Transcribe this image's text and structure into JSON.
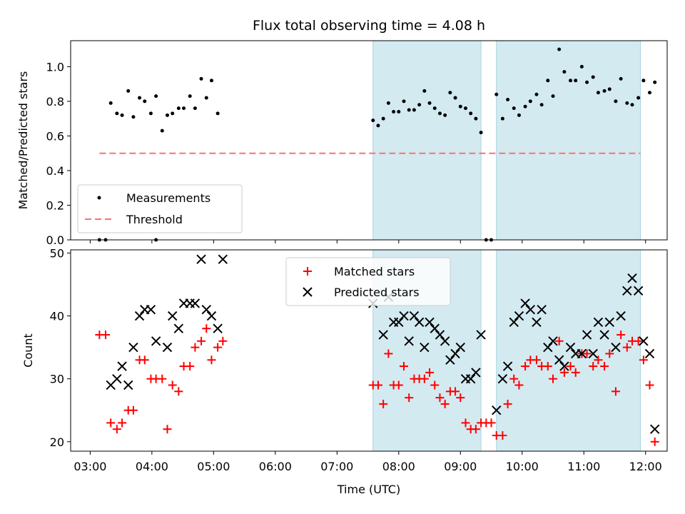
{
  "title": "Flux total observing time = 4.08 h",
  "top": {
    "ylabel": "Matched/Predicted stars",
    "ylim": [
      0,
      1.15
    ],
    "yticks": [
      0.0,
      0.2,
      0.4,
      0.6,
      0.8,
      1.0
    ],
    "ytick_labels": [
      "0.0",
      "0.2",
      "0.4",
      "0.6",
      "0.8",
      "1.0"
    ],
    "legend": {
      "measurements": "Measurements",
      "threshold": "Threshold",
      "placement": "lower-left"
    }
  },
  "bottom": {
    "ylabel": "Count",
    "ylim": [
      18.5,
      50.5
    ],
    "yticks": [
      20,
      30,
      40,
      50
    ],
    "ytick_labels": [
      "20",
      "30",
      "40",
      "50"
    ],
    "legend": {
      "matched": "Matched stars",
      "predicted": "Predicted stars",
      "placement": "upper-center"
    }
  },
  "xaxis": {
    "label": "Time (UTC)",
    "xlim": [
      "02:41",
      "12:21"
    ],
    "ticks": [
      "03:00",
      "04:00",
      "05:00",
      "06:00",
      "07:00",
      "08:00",
      "09:00",
      "10:00",
      "11:00",
      "12:00"
    ]
  },
  "colors": {
    "measurements": "#000000",
    "threshold": "#ff7070",
    "matched": "#ff0000",
    "predicted": "#000000",
    "span_fill": "#d4eaf1",
    "span_edge": "#a9d3e0"
  },
  "chart_data": [
    {
      "type": "scatter",
      "panel": "top",
      "title": "Flux total observing time = 4.08 h",
      "xlabel": "",
      "ylabel": "Matched/Predicted stars",
      "ylim": [
        0,
        1.15
      ],
      "grid": false,
      "shaded_spans": [
        [
          "07:35",
          "09:20"
        ],
        [
          "09:35",
          "11:55"
        ]
      ],
      "threshold": {
        "name": "Threshold",
        "y": 0.5,
        "x": [
          "03:09",
          "11:55"
        ],
        "style": "dashed"
      },
      "series": [
        {
          "name": "Measurements",
          "points": [
            [
              "03:09",
              0.0
            ],
            [
              "03:15",
              0.0
            ],
            [
              "03:20",
              0.79
            ],
            [
              "03:26",
              0.73
            ],
            [
              "03:31",
              0.72
            ],
            [
              "03:37",
              0.86
            ],
            [
              "03:42",
              0.71
            ],
            [
              "03:48",
              0.82
            ],
            [
              "03:53",
              0.8
            ],
            [
              "03:59",
              0.73
            ],
            [
              "04:04",
              0.83
            ],
            [
              "04:04",
              0.0
            ],
            [
              "04:10",
              0.63
            ],
            [
              "04:15",
              0.72
            ],
            [
              "04:20",
              0.73
            ],
            [
              "04:26",
              0.76
            ],
            [
              "04:31",
              0.76
            ],
            [
              "04:37",
              0.83
            ],
            [
              "04:42",
              0.76
            ],
            [
              "04:48",
              0.93
            ],
            [
              "04:53",
              0.82
            ],
            [
              "04:58",
              0.92
            ],
            [
              "05:04",
              0.73
            ],
            [
              "07:35",
              0.69
            ],
            [
              "07:40",
              0.66
            ],
            [
              "07:45",
              0.7
            ],
            [
              "07:50",
              0.79
            ],
            [
              "07:55",
              0.74
            ],
            [
              "08:00",
              0.74
            ],
            [
              "08:05",
              0.8
            ],
            [
              "08:10",
              0.75
            ],
            [
              "08:15",
              0.75
            ],
            [
              "08:20",
              0.78
            ],
            [
              "08:25",
              0.86
            ],
            [
              "08:30",
              0.79
            ],
            [
              "08:35",
              0.76
            ],
            [
              "08:40",
              0.73
            ],
            [
              "08:45",
              0.72
            ],
            [
              "08:50",
              0.85
            ],
            [
              "08:55",
              0.82
            ],
            [
              "09:00",
              0.77
            ],
            [
              "09:05",
              0.76
            ],
            [
              "09:10",
              0.73
            ],
            [
              "09:15",
              0.7
            ],
            [
              "09:20",
              0.62
            ],
            [
              "09:25",
              0.0
            ],
            [
              "09:30",
              0.0
            ],
            [
              "09:35",
              0.84
            ],
            [
              "09:41",
              0.7
            ],
            [
              "09:46",
              0.81
            ],
            [
              "09:52",
              0.76
            ],
            [
              "09:57",
              0.72
            ],
            [
              "10:03",
              0.77
            ],
            [
              "10:08",
              0.8
            ],
            [
              "10:14",
              0.84
            ],
            [
              "10:19",
              0.78
            ],
            [
              "10:25",
              0.92
            ],
            [
              "10:30",
              0.83
            ],
            [
              "10:36",
              1.1
            ],
            [
              "10:41",
              0.97
            ],
            [
              "10:47",
              0.92
            ],
            [
              "10:52",
              0.92
            ],
            [
              "10:58",
              1.0
            ],
            [
              "11:03",
              0.91
            ],
            [
              "11:09",
              0.94
            ],
            [
              "11:14",
              0.85
            ],
            [
              "11:20",
              0.86
            ],
            [
              "11:25",
              0.87
            ],
            [
              "11:31",
              0.8
            ],
            [
              "11:36",
              0.93
            ],
            [
              "11:42",
              0.79
            ],
            [
              "11:47",
              0.78
            ],
            [
              "11:53",
              0.82
            ],
            [
              "11:58",
              0.92
            ],
            [
              "12:04",
              0.85
            ],
            [
              "12:09",
              0.91
            ]
          ]
        }
      ]
    },
    {
      "type": "scatter",
      "panel": "bottom",
      "xlabel": "Time (UTC)",
      "ylabel": "Count",
      "ylim": [
        18.5,
        50.5
      ],
      "grid": false,
      "shaded_spans": [
        [
          "07:35",
          "09:20"
        ],
        [
          "09:35",
          "11:55"
        ]
      ],
      "series": [
        {
          "name": "Matched stars",
          "marker": "plus",
          "points": [
            [
              "03:09",
              37
            ],
            [
              "03:15",
              37
            ],
            [
              "03:20",
              23
            ],
            [
              "03:26",
              22
            ],
            [
              "03:31",
              23
            ],
            [
              "03:37",
              25
            ],
            [
              "03:42",
              25
            ],
            [
              "03:48",
              33
            ],
            [
              "03:53",
              33
            ],
            [
              "03:59",
              30
            ],
            [
              "04:04",
              30
            ],
            [
              "04:10",
              30
            ],
            [
              "04:15",
              22
            ],
            [
              "04:20",
              29
            ],
            [
              "04:26",
              28
            ],
            [
              "04:31",
              32
            ],
            [
              "04:37",
              32
            ],
            [
              "04:42",
              35
            ],
            [
              "04:48",
              36
            ],
            [
              "04:53",
              38
            ],
            [
              "04:58",
              33
            ],
            [
              "05:04",
              35
            ],
            [
              "05:09",
              36
            ],
            [
              "07:35",
              29
            ],
            [
              "07:40",
              29
            ],
            [
              "07:45",
              26
            ],
            [
              "07:50",
              34
            ],
            [
              "07:55",
              29
            ],
            [
              "08:00",
              29
            ],
            [
              "08:05",
              32
            ],
            [
              "08:10",
              27
            ],
            [
              "08:15",
              30
            ],
            [
              "08:20",
              30
            ],
            [
              "08:25",
              30
            ],
            [
              "08:30",
              31
            ],
            [
              "08:35",
              29
            ],
            [
              "08:40",
              27
            ],
            [
              "08:45",
              26
            ],
            [
              "08:50",
              28
            ],
            [
              "08:55",
              28
            ],
            [
              "09:00",
              27
            ],
            [
              "09:05",
              23
            ],
            [
              "09:10",
              22
            ],
            [
              "09:15",
              22
            ],
            [
              "09:20",
              23
            ],
            [
              "09:25",
              23
            ],
            [
              "09:30",
              23
            ],
            [
              "09:35",
              21
            ],
            [
              "09:41",
              21
            ],
            [
              "09:46",
              26
            ],
            [
              "09:52",
              30
            ],
            [
              "09:57",
              29
            ],
            [
              "10:03",
              32
            ],
            [
              "10:08",
              33
            ],
            [
              "10:14",
              33
            ],
            [
              "10:19",
              32
            ],
            [
              "10:25",
              32
            ],
            [
              "10:30",
              30
            ],
            [
              "10:36",
              36
            ],
            [
              "10:41",
              31
            ],
            [
              "10:47",
              32
            ],
            [
              "10:52",
              31
            ],
            [
              "10:58",
              34
            ],
            [
              "11:03",
              34
            ],
            [
              "11:09",
              32
            ],
            [
              "11:14",
              33
            ],
            [
              "11:20",
              32
            ],
            [
              "11:25",
              34
            ],
            [
              "11:31",
              28
            ],
            [
              "11:36",
              37
            ],
            [
              "11:42",
              35
            ],
            [
              "11:47",
              36
            ],
            [
              "11:53",
              36
            ],
            [
              "11:58",
              33
            ],
            [
              "12:04",
              29
            ],
            [
              "12:09",
              20
            ]
          ]
        },
        {
          "name": "Predicted stars",
          "marker": "x",
          "points": [
            [
              "03:20",
              29
            ],
            [
              "03:26",
              30
            ],
            [
              "03:31",
              32
            ],
            [
              "03:37",
              29
            ],
            [
              "03:42",
              35
            ],
            [
              "03:48",
              40
            ],
            [
              "03:53",
              41
            ],
            [
              "03:59",
              41
            ],
            [
              "04:04",
              36
            ],
            [
              "04:15",
              35
            ],
            [
              "04:20",
              40
            ],
            [
              "04:26",
              38
            ],
            [
              "04:31",
              42
            ],
            [
              "04:37",
              42
            ],
            [
              "04:42",
              42
            ],
            [
              "04:48",
              49
            ],
            [
              "04:53",
              41
            ],
            [
              "04:58",
              40
            ],
            [
              "05:04",
              38
            ],
            [
              "05:09",
              49
            ],
            [
              "07:35",
              42
            ],
            [
              "07:45",
              37
            ],
            [
              "07:50",
              43
            ],
            [
              "07:55",
              39
            ],
            [
              "08:00",
              39
            ],
            [
              "08:05",
              40
            ],
            [
              "08:10",
              36
            ],
            [
              "08:15",
              40
            ],
            [
              "08:20",
              39
            ],
            [
              "08:25",
              35
            ],
            [
              "08:30",
              39
            ],
            [
              "08:35",
              38
            ],
            [
              "08:40",
              37
            ],
            [
              "08:45",
              36
            ],
            [
              "08:50",
              33
            ],
            [
              "08:55",
              34
            ],
            [
              "09:00",
              35
            ],
            [
              "09:05",
              30
            ],
            [
              "09:10",
              30
            ],
            [
              "09:15",
              31
            ],
            [
              "09:20",
              37
            ],
            [
              "09:35",
              25
            ],
            [
              "09:41",
              30
            ],
            [
              "09:46",
              32
            ],
            [
              "09:52",
              39
            ],
            [
              "09:57",
              40
            ],
            [
              "10:03",
              42
            ],
            [
              "10:08",
              41
            ],
            [
              "10:14",
              39
            ],
            [
              "10:19",
              41
            ],
            [
              "10:25",
              35
            ],
            [
              "10:30",
              36
            ],
            [
              "10:36",
              33
            ],
            [
              "10:41",
              32
            ],
            [
              "10:47",
              35
            ],
            [
              "10:52",
              34
            ],
            [
              "10:58",
              34
            ],
            [
              "11:03",
              37
            ],
            [
              "11:09",
              34
            ],
            [
              "11:14",
              39
            ],
            [
              "11:20",
              37
            ],
            [
              "11:25",
              39
            ],
            [
              "11:31",
              35
            ],
            [
              "11:36",
              40
            ],
            [
              "11:42",
              44
            ],
            [
              "11:47",
              46
            ],
            [
              "11:53",
              44
            ],
            [
              "11:58",
              36
            ],
            [
              "12:04",
              34
            ],
            [
              "12:09",
              22
            ]
          ]
        }
      ]
    }
  ]
}
